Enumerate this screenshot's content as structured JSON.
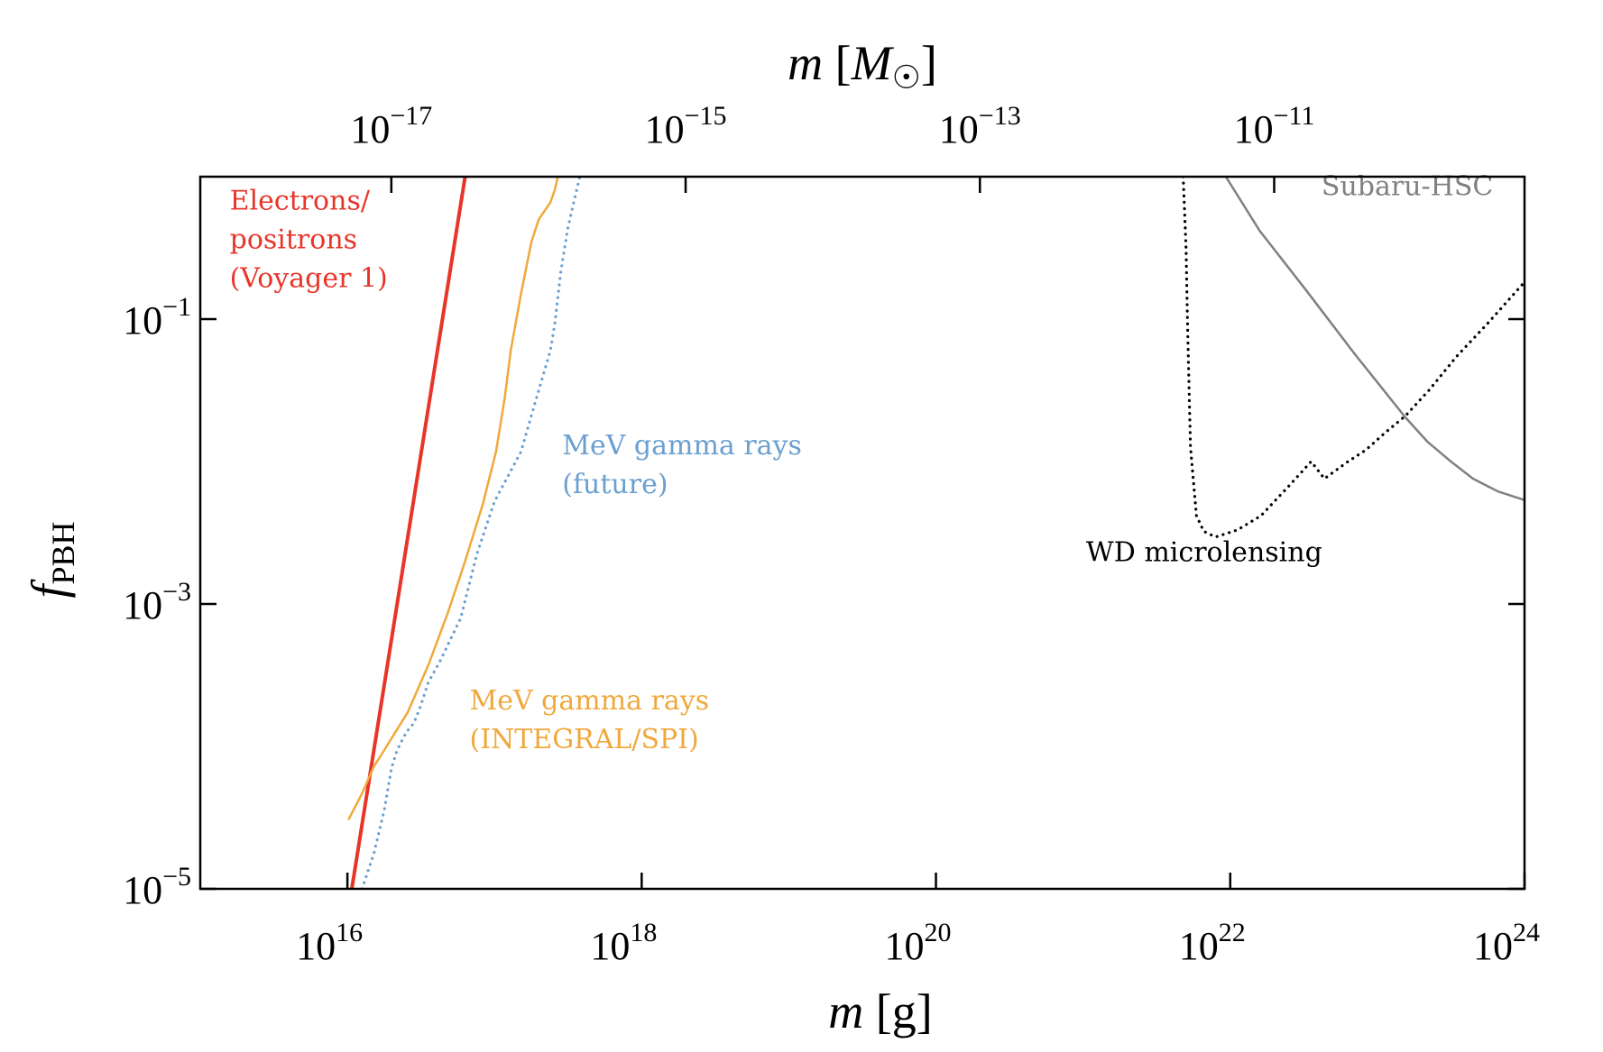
{
  "chart_data": {
    "type": "line",
    "title": "",
    "xlabel": "m [g]",
    "xlabel_top": "m [M☉]",
    "ylabel": "f_PBH",
    "x_scale": "log",
    "y_scale": "log",
    "xlim": [
      1000000000000000.0,
      1e+24
    ],
    "ylim": [
      1e-05,
      1
    ],
    "grid": false,
    "solar_mass_grams": 1.989e+33,
    "x_ticks": [
      {
        "value": 1e+16,
        "base": "10",
        "exp": "16"
      },
      {
        "value": 1e+18,
        "base": "10",
        "exp": "18"
      },
      {
        "value": 1e+20,
        "base": "10",
        "exp": "20"
      },
      {
        "value": 1e+22,
        "base": "10",
        "exp": "22"
      },
      {
        "value": 1e+24,
        "base": "10",
        "exp": "24"
      }
    ],
    "x_top_ticks": [
      {
        "value_msun": 1e-17,
        "base": "10",
        "exp": "−17"
      },
      {
        "value_msun": 1e-15,
        "base": "10",
        "exp": "−15"
      },
      {
        "value_msun": 1e-13,
        "base": "10",
        "exp": "−13"
      },
      {
        "value_msun": 1e-11,
        "base": "10",
        "exp": "−11"
      }
    ],
    "y_ticks": [
      {
        "value": 0.1,
        "base": "10",
        "exp": "−1"
      },
      {
        "value": 0.001,
        "base": "10",
        "exp": "−3"
      },
      {
        "value": 1e-05,
        "base": "10",
        "exp": "−5"
      }
    ],
    "series": [
      {
        "name": "Electrons/positrons (Voyager 1)",
        "color": "#e8352a",
        "style": "solid",
        "width": "thick",
        "points_log10": [
          [
            16.03,
            -5.0
          ],
          [
            16.8,
            0.0
          ]
        ]
      },
      {
        "name": "MeV gamma rays (INTEGRAL/SPI)",
        "color": "#f0a83c",
        "style": "solid",
        "width": "normal",
        "points_log10": [
          [
            16.01,
            -4.51
          ],
          [
            16.1,
            -4.33
          ],
          [
            16.18,
            -4.14
          ],
          [
            16.23,
            -4.06
          ],
          [
            16.32,
            -3.91
          ],
          [
            16.41,
            -3.76
          ],
          [
            16.55,
            -3.43
          ],
          [
            16.68,
            -3.07
          ],
          [
            16.8,
            -2.7
          ],
          [
            16.92,
            -2.3
          ],
          [
            17.01,
            -1.93
          ],
          [
            17.07,
            -1.55
          ],
          [
            17.11,
            -1.22
          ],
          [
            17.18,
            -0.82
          ],
          [
            17.25,
            -0.46
          ],
          [
            17.3,
            -0.3
          ],
          [
            17.38,
            -0.18
          ],
          [
            17.41,
            -0.09
          ],
          [
            17.43,
            0.0
          ]
        ]
      },
      {
        "name": "MeV gamma rays (future)",
        "color": "#6a9fd0",
        "style": "dotted",
        "width": "normal",
        "points_log10": [
          [
            16.1,
            -5.0
          ],
          [
            16.18,
            -4.75
          ],
          [
            16.25,
            -4.45
          ],
          [
            16.3,
            -4.15
          ],
          [
            16.34,
            -4.02
          ],
          [
            16.4,
            -3.9
          ],
          [
            16.45,
            -3.84
          ],
          [
            16.49,
            -3.74
          ],
          [
            16.55,
            -3.55
          ],
          [
            16.63,
            -3.4
          ],
          [
            16.77,
            -3.1
          ],
          [
            16.88,
            -2.65
          ],
          [
            17.0,
            -2.28
          ],
          [
            17.18,
            -1.93
          ],
          [
            17.3,
            -1.5
          ],
          [
            17.38,
            -1.22
          ],
          [
            17.41,
            -1.03
          ],
          [
            17.45,
            -0.67
          ],
          [
            17.5,
            -0.35
          ],
          [
            17.57,
            -0.04
          ],
          [
            17.58,
            0.0
          ]
        ]
      },
      {
        "name": "WD microlensing",
        "color": "#000000",
        "style": "dotted",
        "width": "normal",
        "points_log10": [
          [
            21.68,
            0.0
          ],
          [
            21.7,
            -0.5
          ],
          [
            21.71,
            -1.05
          ],
          [
            21.73,
            -1.9
          ],
          [
            21.77,
            -2.38
          ],
          [
            21.82,
            -2.49
          ],
          [
            21.9,
            -2.53
          ],
          [
            22.05,
            -2.48
          ],
          [
            22.21,
            -2.38
          ],
          [
            22.4,
            -2.17
          ],
          [
            22.55,
            -2.0
          ],
          [
            22.64,
            -2.12
          ],
          [
            22.8,
            -2.0
          ],
          [
            22.92,
            -1.92
          ],
          [
            23.05,
            -1.8
          ],
          [
            23.19,
            -1.68
          ],
          [
            23.35,
            -1.5
          ],
          [
            23.54,
            -1.26
          ],
          [
            23.75,
            -1.03
          ],
          [
            24.0,
            -0.74
          ]
        ]
      },
      {
        "name": "Subaru-HSC",
        "color": "#808080",
        "style": "solid",
        "width": "normal",
        "points_log10": [
          [
            21.97,
            0.0
          ],
          [
            22.2,
            -0.38
          ],
          [
            22.51,
            -0.79
          ],
          [
            22.85,
            -1.25
          ],
          [
            23.19,
            -1.69
          ],
          [
            23.34,
            -1.86
          ],
          [
            23.5,
            -2.0
          ],
          [
            23.65,
            -2.12
          ],
          [
            23.82,
            -2.21
          ],
          [
            24.0,
            -2.27
          ]
        ]
      }
    ],
    "annotations": [
      {
        "lines": [
          "Electrons/",
          "positrons",
          "(Voyager 1)"
        ],
        "color": "#e8352a",
        "anchor_log10": [
          15.2,
          -0.23
        ]
      },
      {
        "lines": [
          "MeV gamma rays",
          "(future)"
        ],
        "color": "#6a9fd0",
        "anchor_log10": [
          17.46,
          -1.95
        ]
      },
      {
        "lines": [
          "MeV gamma rays",
          "(INTEGRAL/SPI)"
        ],
        "color": "#f0a83c",
        "anchor_log10": [
          16.83,
          -3.74
        ]
      },
      {
        "lines": [
          "WD microlensing"
        ],
        "color": "#000000",
        "anchor_log10": [
          21.02,
          -2.7
        ]
      },
      {
        "lines": [
          "Subaru-HSC"
        ],
        "color": "#808080",
        "anchor_log10": [
          22.62,
          -0.13
        ]
      }
    ]
  }
}
